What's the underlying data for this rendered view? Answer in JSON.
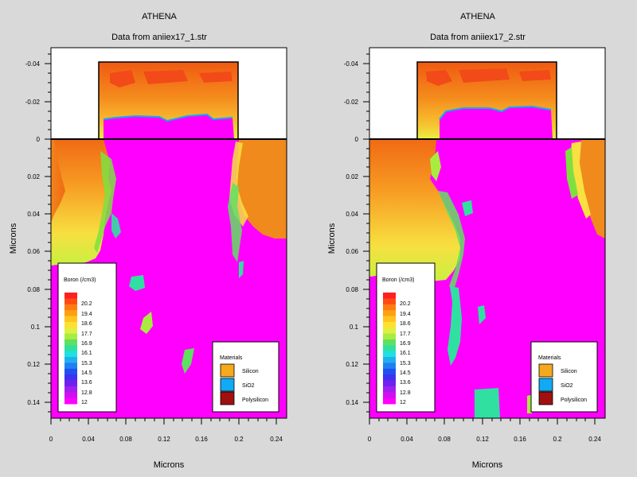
{
  "chart_data": [
    {
      "type": "heatmap",
      "title": "ATHENA",
      "subtitle": "Data from aniiex17_1.str",
      "xlabel": "Microns",
      "ylabel": "Microns",
      "xlim": [
        0,
        0.25
      ],
      "ylim": [
        0.15,
        -0.048
      ],
      "x_ticks": [
        "0",
        "0.04",
        "0.08",
        "0.12",
        "0.16",
        "0.2",
        "0.24"
      ],
      "y_ticks": [
        "-0.04",
        "-0.02",
        "0",
        "0.02",
        "0.04",
        "0.06",
        "0.08",
        "0.1",
        "0.12",
        "0.14"
      ],
      "gate_x": [
        0.05,
        0.2
      ],
      "gate_y": [
        -0.041,
        0
      ],
      "legend_title": "Boron (/cm3)",
      "legend_labels": [
        "20.2",
        "19.4",
        "18.6",
        "17.7",
        "16.9",
        "16.1",
        "15.3",
        "14.5",
        "13.6",
        "12.8",
        "12"
      ],
      "materials_title": "Materials",
      "materials": [
        {
          "name": "Silicon",
          "color": "#f5a91c"
        },
        {
          "name": "SiO2",
          "color": "#10aaf5"
        },
        {
          "name": "Polysilicon",
          "color": "#a01010"
        }
      ]
    },
    {
      "type": "heatmap",
      "title": "ATHENA",
      "subtitle": "Data from aniiex17_2.str",
      "xlabel": "Microns",
      "ylabel": "Microns",
      "xlim": [
        0,
        0.25
      ],
      "ylim": [
        0.15,
        -0.048
      ],
      "x_ticks": [
        "0",
        "0.04",
        "0.08",
        "0.12",
        "0.16",
        "0.2",
        "0.24"
      ],
      "y_ticks": [
        "-0.04",
        "-0.02",
        "0",
        "0.02",
        "0.04",
        "0.06",
        "0.08",
        "0.1",
        "0.12",
        "0.14"
      ],
      "gate_x": [
        0.05,
        0.2
      ],
      "gate_y": [
        -0.041,
        0
      ],
      "legend_title": "Boron (/cm3)",
      "legend_labels": [
        "20.2",
        "19.4",
        "18.6",
        "17.7",
        "16.9",
        "16.1",
        "15.3",
        "14.5",
        "13.6",
        "12.8",
        "12"
      ],
      "materials_title": "Materials",
      "materials": [
        {
          "name": "Silicon",
          "color": "#f5a91c"
        },
        {
          "name": "SiO2",
          "color": "#10aaf5"
        },
        {
          "name": "Polysilicon",
          "color": "#a01010"
        }
      ]
    }
  ],
  "colors": {
    "background": "#d9d9d9",
    "substrate_fill": "#ff00ff",
    "high_doping": "#f06a14",
    "mid_doping": "#f7e840",
    "low_doping": "#2ee08a"
  },
  "scale_colors": [
    "#ff2020",
    "#ff4a12",
    "#ff7a12",
    "#ffa010",
    "#ffc420",
    "#ffe030",
    "#e0f040",
    "#a8ec40",
    "#60e060",
    "#30e0a0",
    "#20e0e0",
    "#20b0f0",
    "#2080f0",
    "#2050f0",
    "#4030f0",
    "#7020f0",
    "#a020f0",
    "#d010f0",
    "#ff00ff"
  ]
}
